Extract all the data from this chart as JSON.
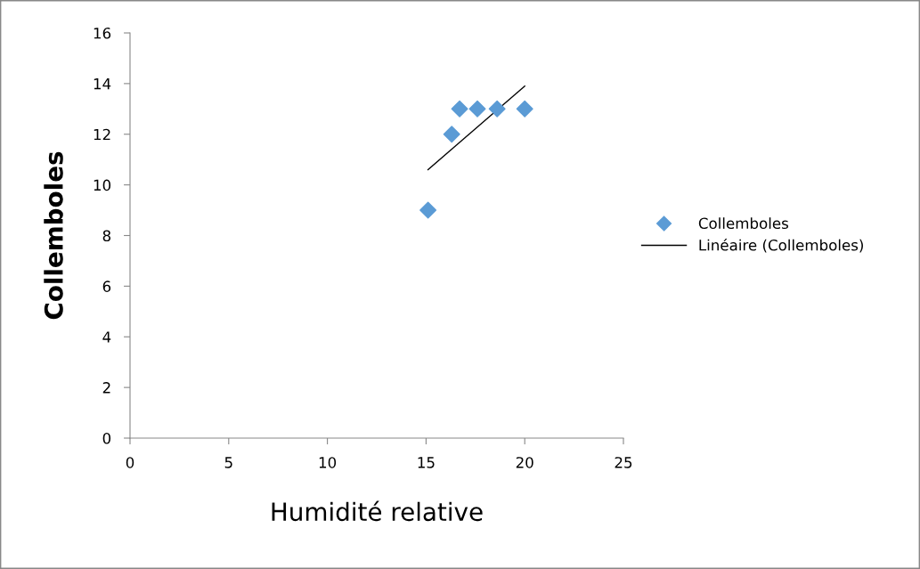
{
  "chart_data": {
    "type": "scatter",
    "xlabel": "Humidité relative",
    "ylabel": "Collemboles",
    "xlim": [
      0,
      25
    ],
    "xticks": [
      0,
      5,
      10,
      15,
      20,
      25
    ],
    "ylim": [
      0,
      16
    ],
    "yticks": [
      0,
      2,
      4,
      6,
      8,
      10,
      12,
      14,
      16
    ],
    "grid": false,
    "legend": "right",
    "series": [
      {
        "name": "Collemboles",
        "marker": "diamond",
        "color": "#5b9bd5",
        "x": [
          15.1,
          16.3,
          16.7,
          17.6,
          18.6,
          20.0
        ],
        "values": [
          9,
          12,
          13,
          13,
          13,
          13
        ]
      },
      {
        "name": "Linéaire (Collemboles)",
        "type": "line",
        "marker": "none",
        "color": "#000000",
        "x": [
          15.1,
          20.0
        ],
        "values": [
          10.6,
          13.9
        ]
      }
    ]
  }
}
